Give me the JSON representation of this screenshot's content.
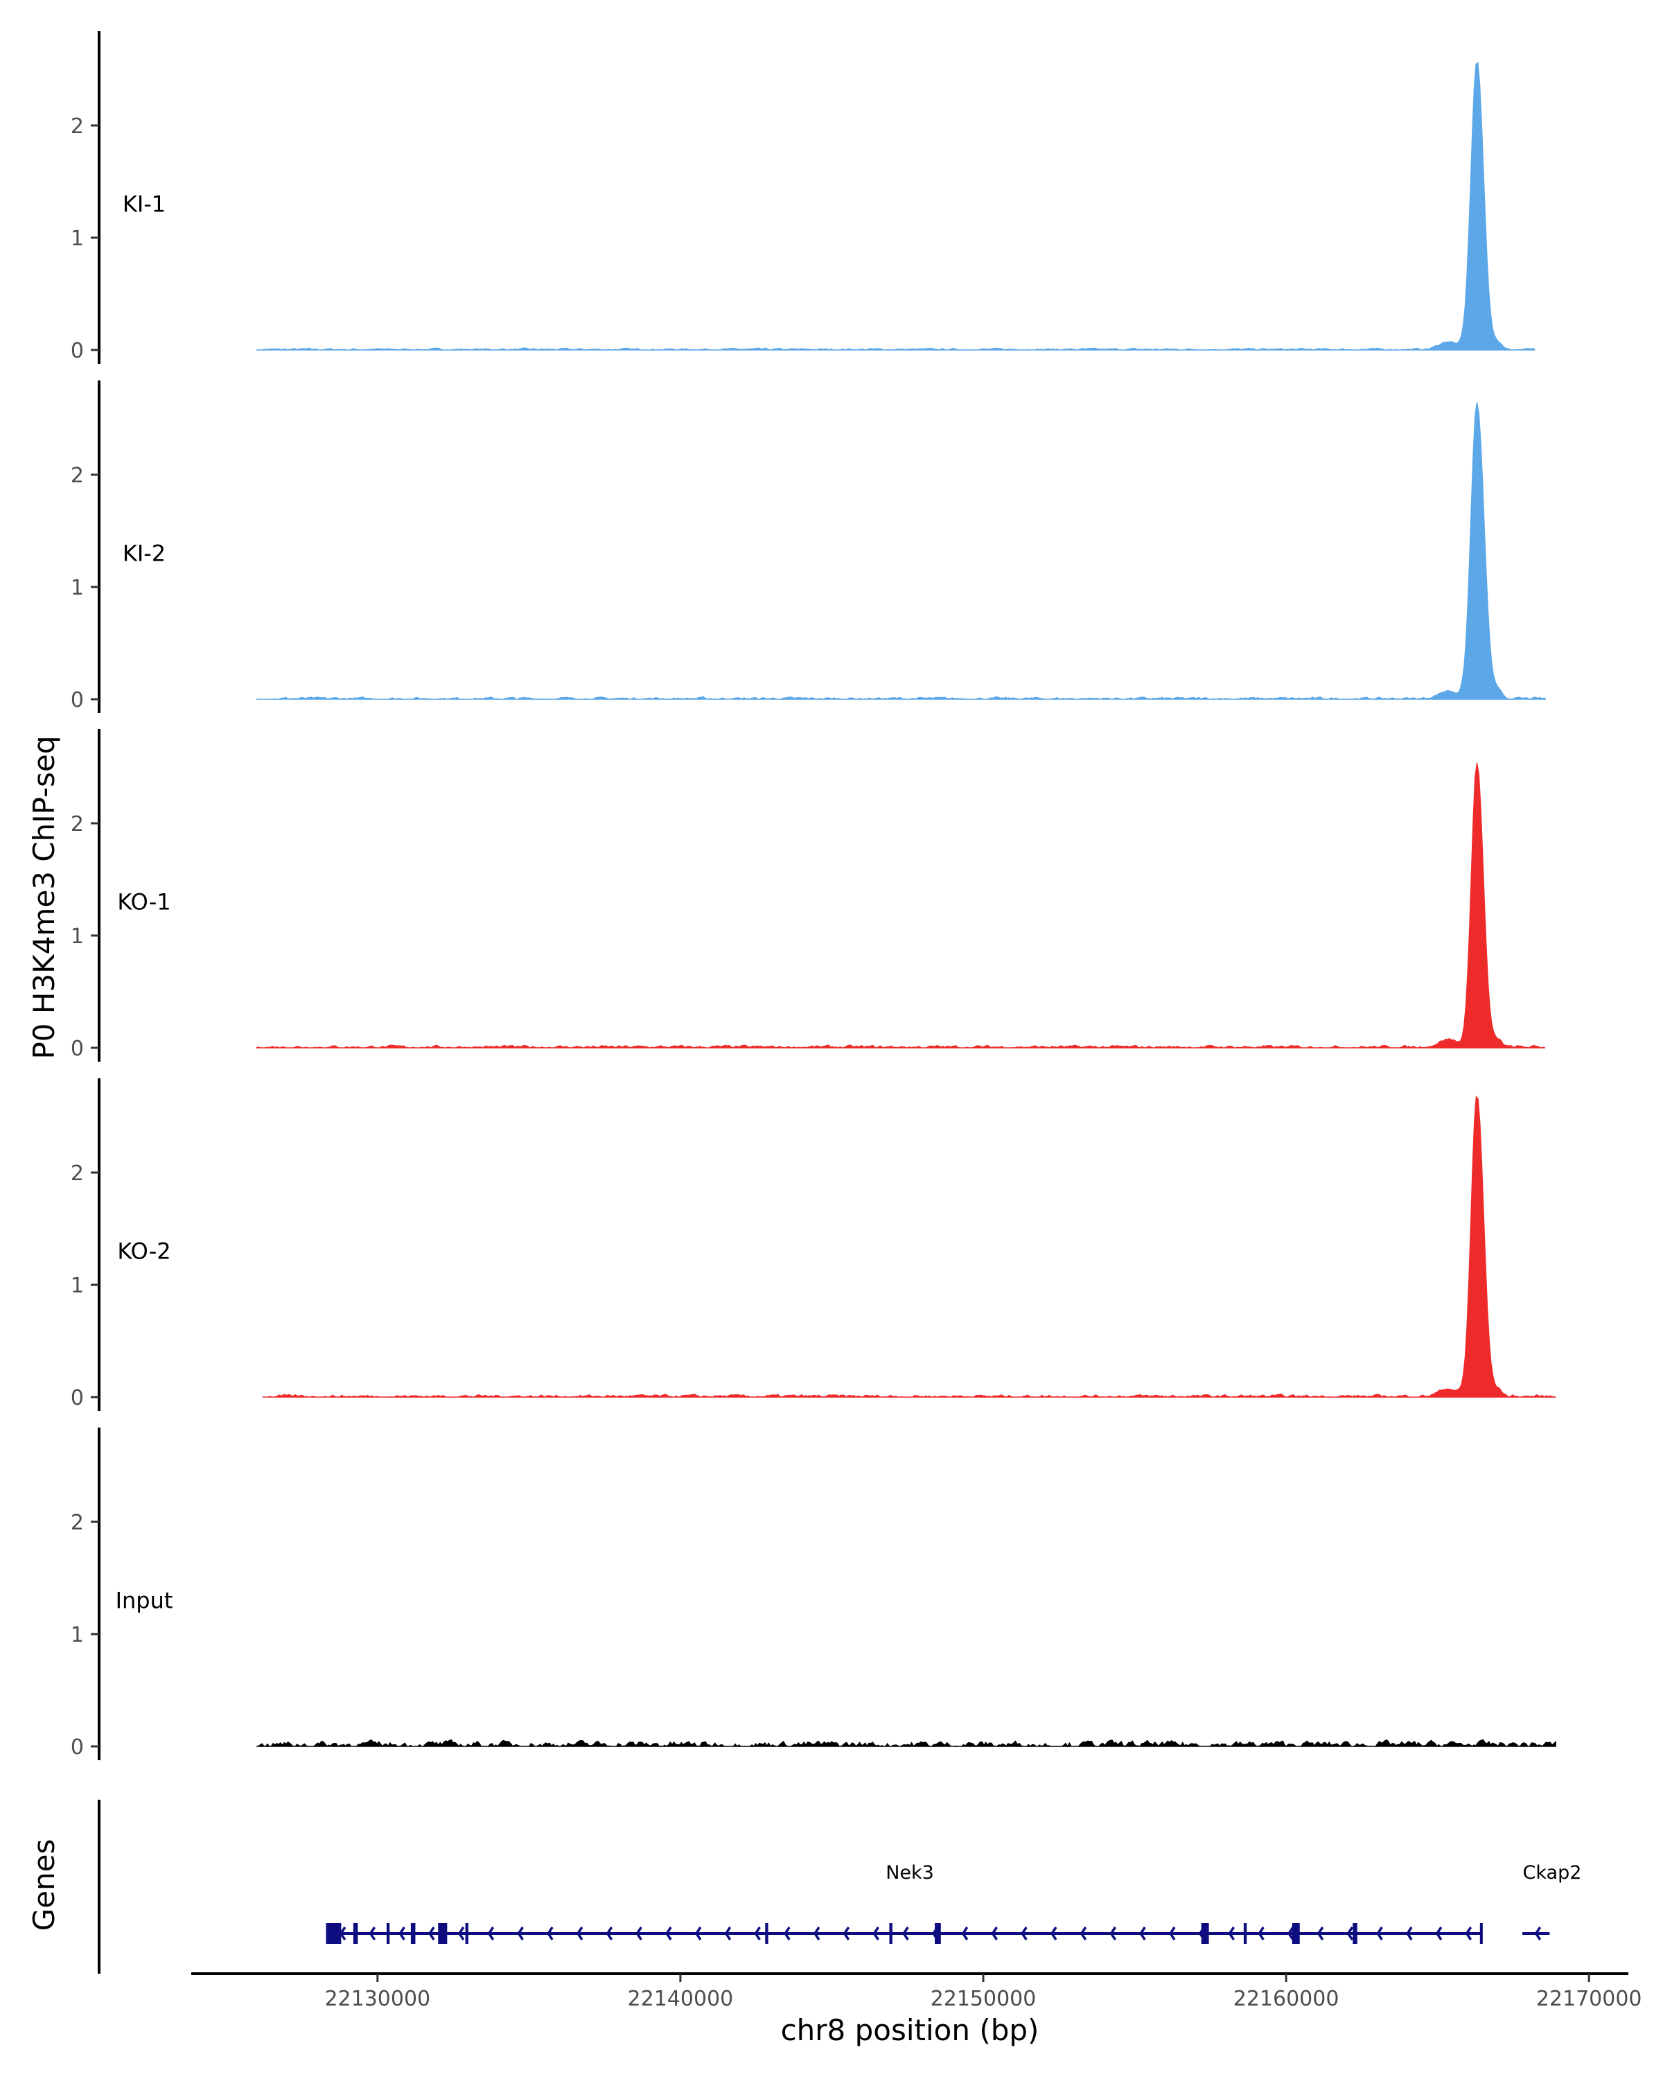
{
  "chart_data": {
    "type": "area",
    "ylabel": "P0 H3K4me3 ChIP-seq",
    "xlabel": "chr8 position (bp)",
    "xlim": [
      22123850,
      22171300
    ],
    "x_ticks": [
      22130000,
      22140000,
      22150000,
      22160000,
      22170000
    ],
    "x_tick_labels": [
      "22130000",
      "22140000",
      "22150000",
      "22160000",
      "22170000"
    ],
    "ylim": [
      0,
      2.85
    ],
    "y_ticks": [
      0,
      1,
      2
    ],
    "y_tick_labels": [
      "0",
      "1",
      "2"
    ],
    "grid": false,
    "tracks": [
      {
        "name": "KI-1",
        "color": "#5ba7e8",
        "start": 22126000,
        "end": 22168200,
        "background_max": 0.02,
        "peak": {
          "center": 22166300,
          "height": 2.57,
          "width_left": 280,
          "width_right": 310
        }
      },
      {
        "name": "KI-2",
        "color": "#5ba7e8",
        "start": 22126000,
        "end": 22168550,
        "background_max": 0.025,
        "peak": {
          "center": 22166300,
          "height": 2.63,
          "width_left": 280,
          "width_right": 330
        }
      },
      {
        "name": "KO-1",
        "color": "#ee2b2b",
        "start": 22126000,
        "end": 22168550,
        "background_max": 0.03,
        "peak": {
          "center": 22166300,
          "height": 2.53,
          "width_left": 260,
          "width_right": 300
        }
      },
      {
        "name": "KO-2",
        "color": "#ee2b2b",
        "start": 22126200,
        "end": 22168900,
        "background_max": 0.03,
        "peak": {
          "center": 22166300,
          "height": 2.69,
          "width_left": 270,
          "width_right": 310
        }
      },
      {
        "name": "Input",
        "color": "#000000",
        "start": 22126000,
        "end": 22168900,
        "background_max": 0.07
      }
    ],
    "genes_track": {
      "label": "Genes",
      "color": "#0d0d80",
      "genes": [
        {
          "name": "Nek3",
          "strand": "-",
          "start": 22128300,
          "end": 22166450,
          "exons": [
            [
              22128300,
              22128800
            ],
            [
              22129200,
              22129350
            ],
            [
              22130300,
              22130400
            ],
            [
              22131100,
              22131250
            ],
            [
              22132000,
              22132300
            ],
            [
              22132900,
              22133000
            ],
            [
              22142800,
              22142900
            ],
            [
              22146900,
              22147000
            ],
            [
              22148400,
              22148600
            ],
            [
              22157200,
              22157450
            ],
            [
              22158600,
              22158700
            ],
            [
              22160200,
              22160450
            ],
            [
              22162200,
              22162350
            ],
            [
              22166400,
              22166450
            ]
          ]
        },
        {
          "name": "Ckap2",
          "strand": "-",
          "start": 22167800,
          "end": 22168700,
          "exons": []
        }
      ]
    }
  }
}
